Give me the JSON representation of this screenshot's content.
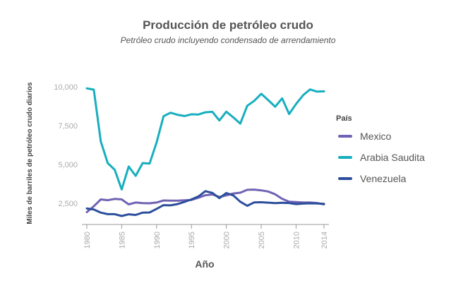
{
  "chart_data": {
    "type": "line",
    "title": "Producción de petróleo crudo",
    "subtitle": "Petróleo crudo incluyendo condensado de arrendamiento",
    "xlabel": "Año",
    "ylabel": "Miles de barriles de petróleo crudo diarios",
    "x": [
      1980,
      1981,
      1982,
      1983,
      1984,
      1985,
      1986,
      1987,
      1988,
      1989,
      1990,
      1991,
      1992,
      1993,
      1994,
      1995,
      1996,
      1997,
      1998,
      1999,
      2000,
      2001,
      2002,
      2003,
      2004,
      2005,
      2006,
      2007,
      2008,
      2009,
      2010,
      2011,
      2012,
      2013,
      2014
    ],
    "x_ticks": [
      1980,
      1985,
      1990,
      1995,
      2000,
      2005,
      2010,
      2014
    ],
    "x_tick_labels": [
      "1980",
      "1985",
      "1990",
      "1995",
      "2000",
      "2005",
      "2010",
      "2014"
    ],
    "xlim": [
      1980,
      2014
    ],
    "y_ticks": [
      2500,
      5000,
      7500,
      10000
    ],
    "y_tick_labels": [
      "2,500",
      "5,000",
      "7,500",
      "10,000"
    ],
    "ylim": [
      1500,
      10000
    ],
    "grid": false,
    "legend": {
      "title": "País",
      "position": "right"
    },
    "series": [
      {
        "name": "Mexico",
        "color": "#7063b3",
        "values": [
          1930,
          2310,
          2750,
          2700,
          2780,
          2750,
          2430,
          2550,
          2510,
          2500,
          2550,
          2680,
          2670,
          2670,
          2690,
          2720,
          2860,
          3020,
          3070,
          2910,
          3010,
          3130,
          3180,
          3370,
          3380,
          3330,
          3260,
          3080,
          2790,
          2600,
          2580,
          2550,
          2550,
          2520,
          2430
        ]
      },
      {
        "name": "Arabia Saudita",
        "color": "#17aebf",
        "values": [
          9900,
          9820,
          6480,
          5090,
          4660,
          3390,
          4870,
          4270,
          5090,
          5060,
          6410,
          8110,
          8330,
          8200,
          8120,
          8230,
          8220,
          8360,
          8390,
          7830,
          8400,
          8030,
          7630,
          8780,
          9100,
          9550,
          9150,
          8720,
          9260,
          8250,
          8900,
          9460,
          9830,
          9690,
          9710
        ]
      },
      {
        "name": "Venezuela",
        "color": "#2c4e9c",
        "values": [
          2170,
          2100,
          1900,
          1800,
          1800,
          1680,
          1790,
          1750,
          1900,
          1910,
          2140,
          2380,
          2370,
          2450,
          2590,
          2750,
          2940,
          3280,
          3170,
          2830,
          3160,
          3010,
          2600,
          2340,
          2560,
          2570,
          2540,
          2510,
          2530,
          2520,
          2450,
          2480,
          2500,
          2490,
          2470
        ]
      }
    ]
  }
}
